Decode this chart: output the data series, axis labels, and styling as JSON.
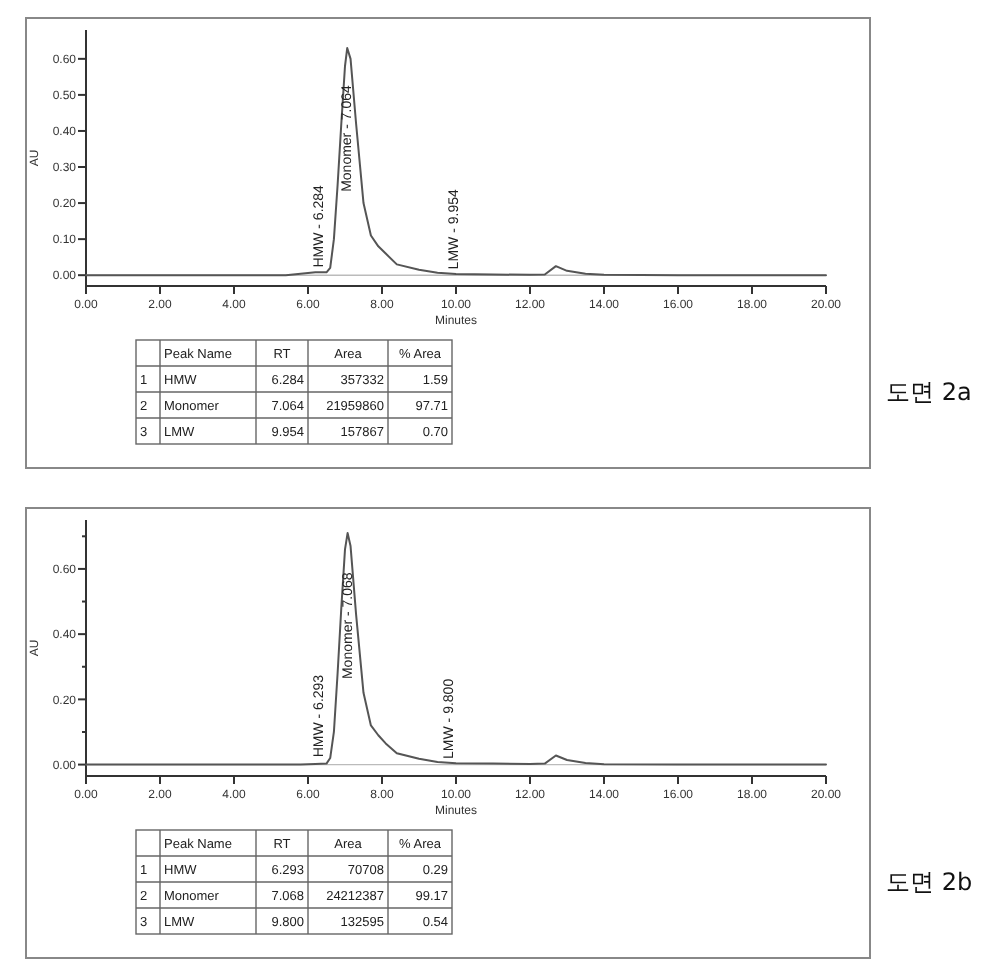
{
  "chart_data": [
    {
      "type": "line",
      "xlabel": "Minutes",
      "ylabel": "AU",
      "xlim": [
        0,
        20
      ],
      "ylim": [
        -0.03,
        0.68
      ],
      "xticks": [
        {
          "value": 0,
          "label": "0.00"
        },
        {
          "value": 2,
          "label": "2.00"
        },
        {
          "value": 4,
          "label": "4.00"
        },
        {
          "value": 6,
          "label": "6.00"
        },
        {
          "value": 8,
          "label": "8.00"
        },
        {
          "value": 10,
          "label": "10.00"
        },
        {
          "value": 12,
          "label": "12.00"
        },
        {
          "value": 14,
          "label": "14.00"
        },
        {
          "value": 16,
          "label": "16.00"
        },
        {
          "value": 18,
          "label": "18.00"
        },
        {
          "value": 20,
          "label": "20.00"
        }
      ],
      "yticks": [
        {
          "value": 0,
          "label": "0.00"
        },
        {
          "value": 0.1,
          "label": "0.10"
        },
        {
          "value": 0.2,
          "label": "0.20"
        },
        {
          "value": 0.3,
          "label": "0.30"
        },
        {
          "value": 0.4,
          "label": "0.40"
        },
        {
          "value": 0.5,
          "label": "0.50"
        },
        {
          "value": 0.6,
          "label": "0.60"
        }
      ],
      "marker": "none",
      "line_style": "solid",
      "series": [
        {
          "color": "#555555",
          "x": [
            0,
            5.4,
            5.8,
            6.2,
            6.5,
            6.6,
            6.7,
            6.8,
            6.9,
            7.0,
            7.06,
            7.15,
            7.3,
            7.5,
            7.7,
            7.9,
            8.1,
            8.4,
            9.0,
            9.5,
            10,
            11,
            12,
            12.4,
            12.7,
            13.0,
            13.5,
            14,
            16,
            20
          ],
          "values": [
            0,
            0,
            0.004,
            0.008,
            0.008,
            0.02,
            0.1,
            0.25,
            0.42,
            0.58,
            0.63,
            0.6,
            0.42,
            0.2,
            0.11,
            0.08,
            0.06,
            0.03,
            0.015,
            0.007,
            0.003,
            0.002,
            0.001,
            0.002,
            0.025,
            0.012,
            0.004,
            0.001,
            0,
            0
          ]
        }
      ],
      "annotations": [
        {
          "text": "HMW - 6.284",
          "x": 6.284,
          "y": 0.01
        },
        {
          "text": "Monomer - 7.064",
          "x": 7.064,
          "y": 0.22
        },
        {
          "text": "LMW - 9.954",
          "x": 9.954,
          "y": 0.005
        },
        "도면 2a",
        "Peak Name",
        "RT",
        "Area",
        "% Area",
        "1",
        "HMW",
        "6.284",
        "357332",
        "1.59",
        "2",
        "Monomer",
        "7.064",
        "21959860",
        "97.71",
        "3",
        "LMW",
        "9.954",
        "157867",
        "0.70"
      ]
    },
    {
      "type": "line",
      "xlabel": "Minutes",
      "ylabel": "AU",
      "xlim": [
        0,
        20
      ],
      "ylim": [
        -0.035,
        0.75
      ],
      "xticks": [
        {
          "value": 0,
          "label": "0.00"
        },
        {
          "value": 2,
          "label": "2.00"
        },
        {
          "value": 4,
          "label": "4.00"
        },
        {
          "value": 6,
          "label": "6.00"
        },
        {
          "value": 8,
          "label": "8.00"
        },
        {
          "value": 10,
          "label": "10.00"
        },
        {
          "value": 12,
          "label": "12.00"
        },
        {
          "value": 14,
          "label": "14.00"
        },
        {
          "value": 16,
          "label": "16.00"
        },
        {
          "value": 18,
          "label": "18.00"
        },
        {
          "value": 20,
          "label": "20.00"
        }
      ],
      "yticks": [
        {
          "value": 0,
          "label": "0.00"
        },
        {
          "value": 0.1,
          "label": null
        },
        {
          "value": 0.2,
          "label": "0.20"
        },
        {
          "value": 0.3,
          "label": null
        },
        {
          "value": 0.4,
          "label": "0.40"
        },
        {
          "value": 0.5,
          "label": null
        },
        {
          "value": 0.6,
          "label": "0.60"
        },
        {
          "value": 0.7,
          "label": null
        }
      ],
      "marker": "none",
      "line_style": "solid",
      "series": [
        {
          "color": "#555555",
          "x": [
            0,
            5.8,
            6.2,
            6.5,
            6.6,
            6.7,
            6.8,
            6.9,
            7.0,
            7.07,
            7.15,
            7.3,
            7.5,
            7.7,
            7.9,
            8.1,
            8.4,
            9.0,
            9.5,
            10,
            11,
            12,
            12.4,
            12.7,
            13.0,
            13.5,
            14,
            16,
            20
          ],
          "values": [
            0,
            0,
            0.002,
            0.003,
            0.02,
            0.1,
            0.28,
            0.48,
            0.66,
            0.71,
            0.67,
            0.46,
            0.22,
            0.12,
            0.09,
            0.065,
            0.035,
            0.018,
            0.008,
            0.004,
            0.003,
            0.002,
            0.003,
            0.028,
            0.014,
            0.005,
            0.001,
            0,
            0
          ]
        }
      ],
      "annotations": [
        {
          "text": "HMW - 6.293",
          "x": 6.293,
          "y": 0.01
        },
        {
          "text": "Monomer - 7.068",
          "x": 7.068,
          "y": 0.25
        },
        {
          "text": "LMW - 9.800",
          "x": 9.8,
          "y": 0.005
        },
        "도면 2b",
        "Peak Name",
        "RT",
        "Area",
        "% Area",
        "1",
        "HMW",
        "6.293",
        "70708",
        "0.29",
        "2",
        "Monomer",
        "7.068",
        "24212387",
        "99.17",
        "3",
        "LMW",
        "9.800",
        "132595",
        "0.54"
      ]
    }
  ]
}
